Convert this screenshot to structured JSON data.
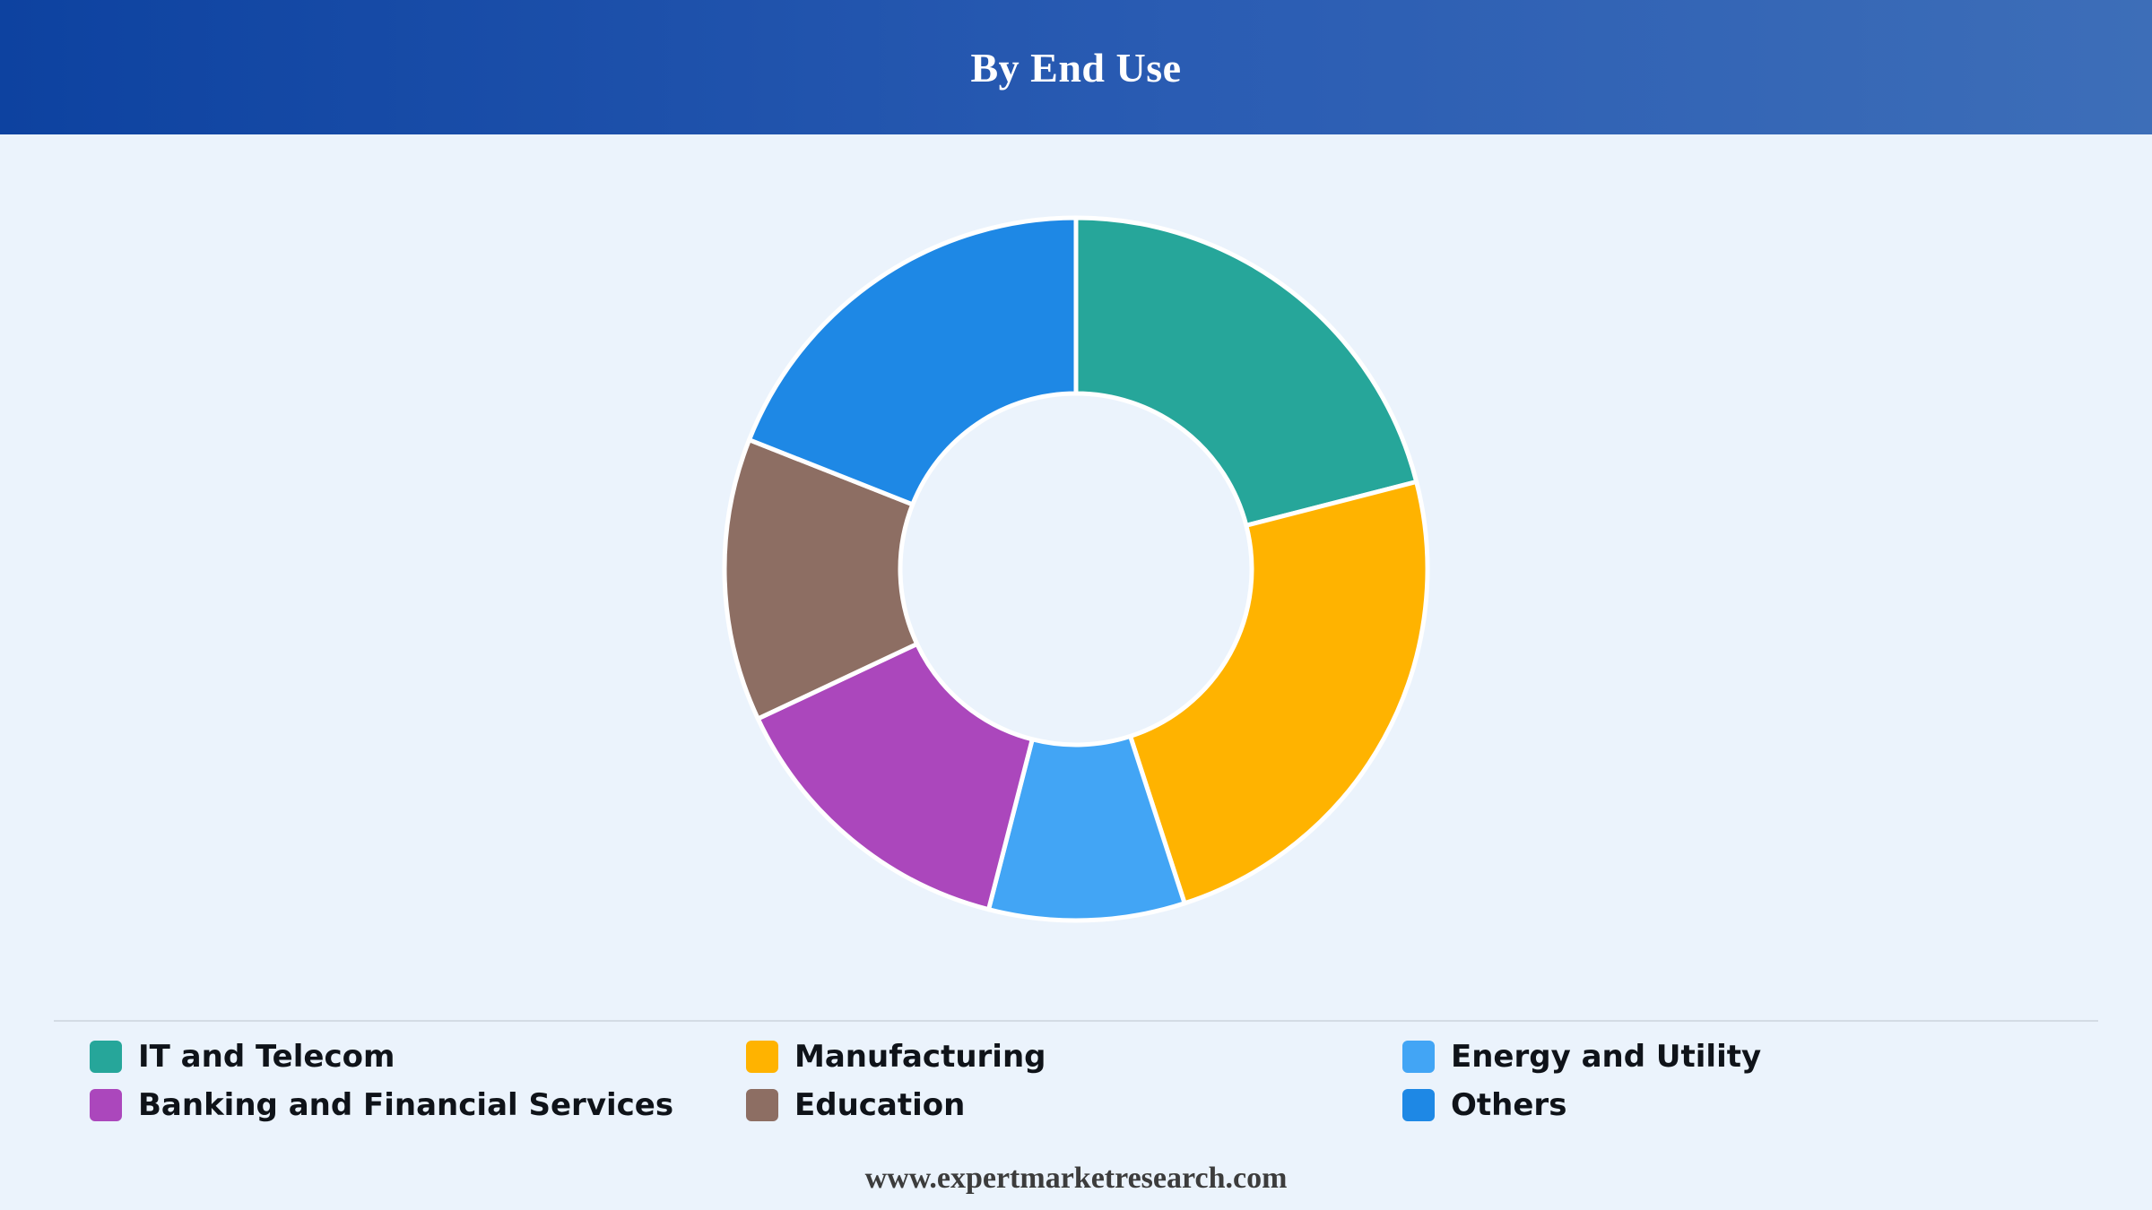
{
  "header": {
    "title": "By End Use"
  },
  "chart_data": {
    "type": "pie",
    "donut": true,
    "title": "By End Use",
    "legend_position": "bottom",
    "series": [
      {
        "name": "IT and Telecom",
        "value": 21,
        "color": "#26a69a"
      },
      {
        "name": "Manufacturing",
        "value": 24,
        "color": "#ffb300"
      },
      {
        "name": "Energy and Utility",
        "value": 9,
        "color": "#42a5f5"
      },
      {
        "name": "Banking and Financial Services",
        "value": 14,
        "color": "#ab47bc"
      },
      {
        "name": "Education",
        "value": 13,
        "color": "#8d6e63"
      },
      {
        "name": "Others",
        "value": 19,
        "color": "#1e88e5"
      }
    ]
  },
  "footer": {
    "text": "www.expertmarketresearch.com"
  }
}
